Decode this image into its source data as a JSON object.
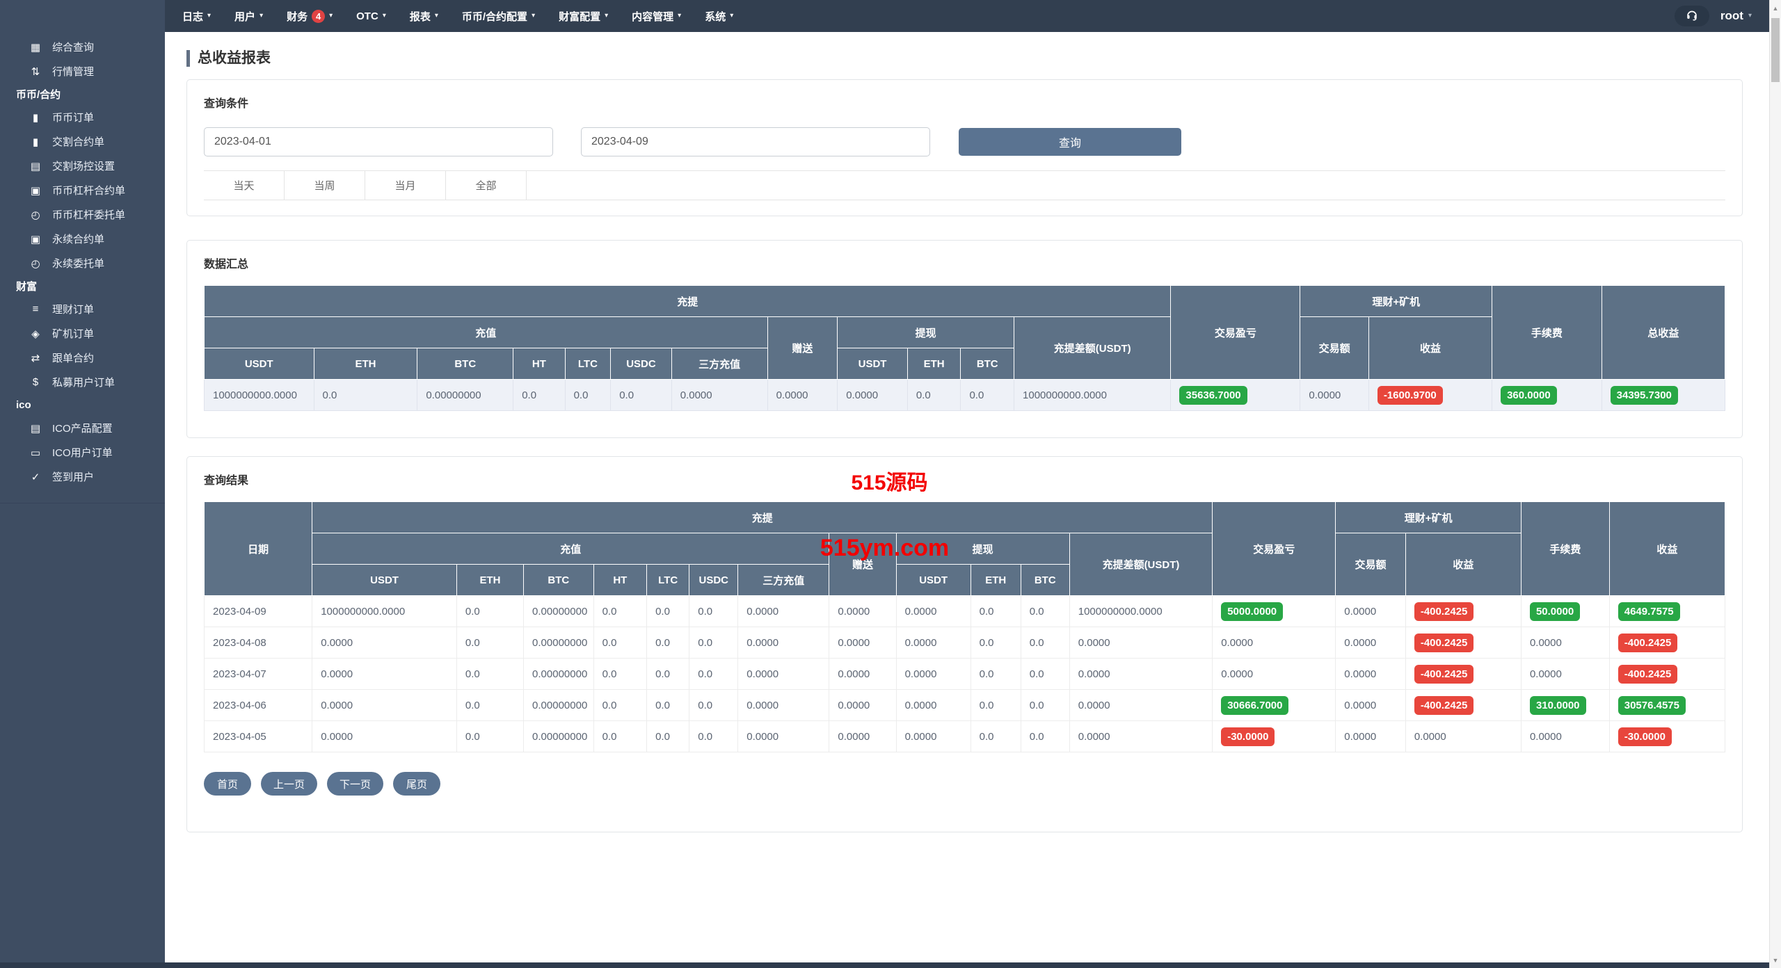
{
  "colors": {
    "accent": "#5a7391",
    "header_bg": "#5d7186",
    "badge_green": "#28a745",
    "badge_red": "#e8463c"
  },
  "nav": {
    "caret": "▾",
    "items": [
      {
        "label": "日志"
      },
      {
        "label": "用户"
      },
      {
        "label": "财务",
        "badge": "4"
      },
      {
        "label": "OTC"
      },
      {
        "label": "报表"
      },
      {
        "label": "币币/合约配置"
      },
      {
        "label": "财富配置"
      },
      {
        "label": "内容管理"
      },
      {
        "label": "系统"
      }
    ],
    "user": "root"
  },
  "sidebar": {
    "items": [
      {
        "type": "item",
        "icon": "grid-icon",
        "glyph": "▦",
        "label": "综合查询"
      },
      {
        "type": "item",
        "icon": "sort-lines-icon",
        "glyph": "⇅",
        "label": "行情管理"
      },
      {
        "type": "section",
        "label": "币币/合约"
      },
      {
        "type": "item",
        "icon": "bookmark-icon",
        "glyph": "▮",
        "label": "币币订单"
      },
      {
        "type": "item",
        "icon": "bookmark-icon",
        "glyph": "▮",
        "label": "交割合约单"
      },
      {
        "type": "item",
        "icon": "clipboard-icon",
        "glyph": "▤",
        "label": "交割场控设置"
      },
      {
        "type": "item",
        "icon": "copy-icon",
        "glyph": "▣",
        "label": "币币杠杆合约单"
      },
      {
        "type": "item",
        "icon": "file-clock-icon",
        "glyph": "◴",
        "label": "币币杠杆委托单"
      },
      {
        "type": "item",
        "icon": "copy-icon",
        "glyph": "▣",
        "label": "永续合约单"
      },
      {
        "type": "item",
        "icon": "file-clock-icon",
        "glyph": "◴",
        "label": "永续委托单"
      },
      {
        "type": "section",
        "label": "财富"
      },
      {
        "type": "item",
        "icon": "coins-icon",
        "glyph": "≡",
        "label": "理财订单"
      },
      {
        "type": "item",
        "icon": "layers-icon",
        "glyph": "◈",
        "label": "矿机订单"
      },
      {
        "type": "item",
        "icon": "follow-order-icon",
        "glyph": "⇄",
        "label": "跟单合约"
      },
      {
        "type": "item",
        "icon": "dollar-icon",
        "glyph": "$",
        "label": "私募用户订单"
      },
      {
        "type": "section",
        "label": "ico"
      },
      {
        "type": "item",
        "icon": "file-edit-icon",
        "glyph": "▤",
        "label": "ICO产品配置"
      },
      {
        "type": "item",
        "icon": "monitor-icon",
        "glyph": "▭",
        "label": "ICO用户订单"
      },
      {
        "type": "item",
        "icon": "checkin-icon",
        "glyph": "✓",
        "label": "签到用户"
      }
    ]
  },
  "page": {
    "title": "总收益报表"
  },
  "query": {
    "panel_title": "查询条件",
    "date_from": "2023-04-01",
    "date_to": "2023-04-09",
    "search_label": "查询",
    "quick_filters": [
      "当天",
      "当周",
      "当月",
      "全部"
    ]
  },
  "table_headers": {
    "date": "日期",
    "deposit_withdraw": "充提",
    "deposit": "充值",
    "deposit_coins": [
      "USDT",
      "ETH",
      "BTC",
      "HT",
      "LTC",
      "USDC",
      "三方充值"
    ],
    "gift": "赠送",
    "withdraw": "提现",
    "withdraw_coins": [
      "USDT",
      "ETH",
      "BTC"
    ],
    "diff": "充提差额(USDT)",
    "trade_pnl": "交易盈亏",
    "wealth_mining": "理财+矿机",
    "trade_amount": "交易额",
    "income": "收益",
    "fee": "手续费",
    "summary_total": "总收益",
    "result_total": "收益"
  },
  "summary": {
    "panel_title": "数据汇总",
    "row": [
      "1000000000.0000",
      "0.0",
      "0.00000000",
      "0.0",
      "0.0",
      "0.0",
      "0.0000",
      "0.0000",
      "0.0000",
      "0.0",
      "0.0",
      "1000000000.0000",
      {
        "v": "35636.7000",
        "s": "green"
      },
      "0.0000",
      {
        "v": "-1600.9700",
        "s": "red"
      },
      {
        "v": "360.0000",
        "s": "green"
      },
      {
        "v": "34395.7300",
        "s": "green"
      }
    ]
  },
  "results": {
    "panel_title": "查询结果",
    "watermark_line1": "515源码",
    "watermark_line2": "515ym.com",
    "rows": [
      [
        "2023-04-09",
        "1000000000.0000",
        "0.0",
        "0.00000000",
        "0.0",
        "0.0",
        "0.0",
        "0.0000",
        "0.0000",
        "0.0000",
        "0.0",
        "0.0",
        "1000000000.0000",
        {
          "v": "5000.0000",
          "s": "green"
        },
        "0.0000",
        {
          "v": "-400.2425",
          "s": "red"
        },
        {
          "v": "50.0000",
          "s": "green"
        },
        {
          "v": "4649.7575",
          "s": "green"
        }
      ],
      [
        "2023-04-08",
        "0.0000",
        "0.0",
        "0.00000000",
        "0.0",
        "0.0",
        "0.0",
        "0.0000",
        "0.0000",
        "0.0000",
        "0.0",
        "0.0",
        "0.0000",
        "0.0000",
        "0.0000",
        {
          "v": "-400.2425",
          "s": "red"
        },
        "0.0000",
        {
          "v": "-400.2425",
          "s": "red"
        }
      ],
      [
        "2023-04-07",
        "0.0000",
        "0.0",
        "0.00000000",
        "0.0",
        "0.0",
        "0.0",
        "0.0000",
        "0.0000",
        "0.0000",
        "0.0",
        "0.0",
        "0.0000",
        "0.0000",
        "0.0000",
        {
          "v": "-400.2425",
          "s": "red"
        },
        "0.0000",
        {
          "v": "-400.2425",
          "s": "red"
        }
      ],
      [
        "2023-04-06",
        "0.0000",
        "0.0",
        "0.00000000",
        "0.0",
        "0.0",
        "0.0",
        "0.0000",
        "0.0000",
        "0.0000",
        "0.0",
        "0.0",
        "0.0000",
        {
          "v": "30666.7000",
          "s": "green"
        },
        "0.0000",
        {
          "v": "-400.2425",
          "s": "red"
        },
        {
          "v": "310.0000",
          "s": "green"
        },
        {
          "v": "30576.4575",
          "s": "green"
        }
      ],
      [
        "2023-04-05",
        "0.0000",
        "0.0",
        "0.00000000",
        "0.0",
        "0.0",
        "0.0",
        "0.0000",
        "0.0000",
        "0.0000",
        "0.0",
        "0.0",
        "0.0000",
        {
          "v": "-30.0000",
          "s": "red"
        },
        "0.0000",
        "0.0000",
        "0.0000",
        {
          "v": "-30.0000",
          "s": "red"
        }
      ]
    ]
  },
  "pagination": [
    "首页",
    "上一页",
    "下一页",
    "尾页"
  ],
  "scrollbar": {
    "up": "▲",
    "down": "▼"
  }
}
